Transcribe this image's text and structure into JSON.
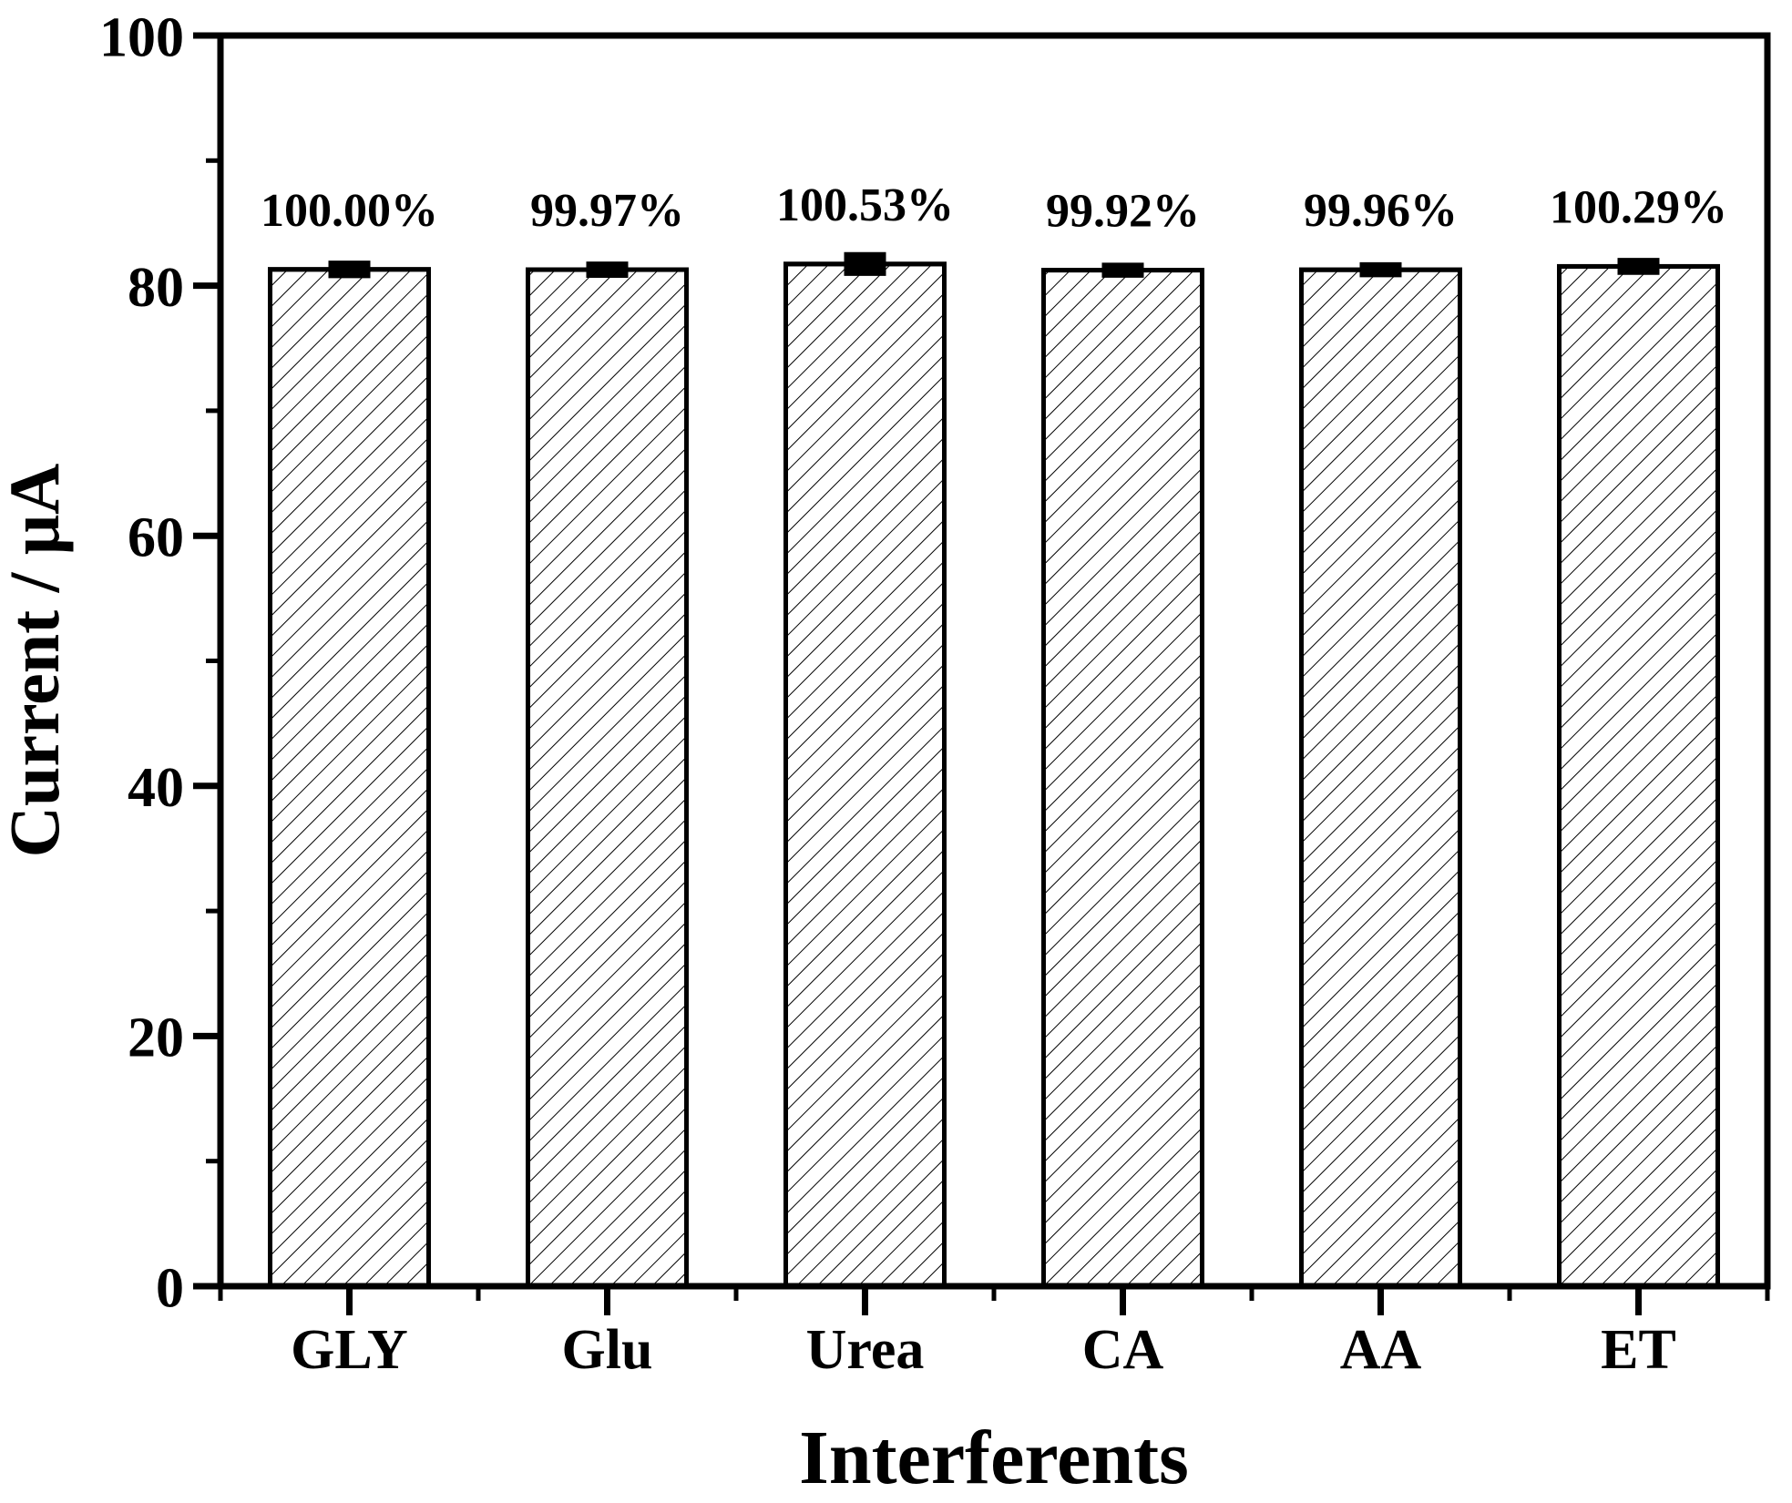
{
  "figure": {
    "background": "#ffffff",
    "foreground": "#000000"
  },
  "chart_data": {
    "type": "bar",
    "categories": [
      "GLY",
      "Glu",
      "Urea",
      "CA",
      "AA",
      "ET"
    ],
    "values": [
      81.3,
      81.28,
      81.73,
      81.24,
      81.27,
      81.54
    ],
    "errors": [
      0.3,
      0.25,
      0.55,
      0.2,
      0.2,
      0.28
    ],
    "bar_labels": [
      "100.00%",
      "99.97%",
      "100.53%",
      "99.92%",
      "99.96%",
      "100.29%"
    ],
    "title": "",
    "xlabel": "Interferents",
    "ylabel": "Current / μA",
    "ylim": [
      0,
      100
    ],
    "yticks_major": [
      0,
      20,
      40,
      60,
      80,
      100
    ],
    "yticks_minor": [
      10,
      30,
      50,
      70,
      90
    ],
    "grid": false,
    "legend": null,
    "bar_fill": "#ffffff",
    "bar_hatch": "diagonal-forward-slash",
    "stroke_color": "#000000"
  }
}
